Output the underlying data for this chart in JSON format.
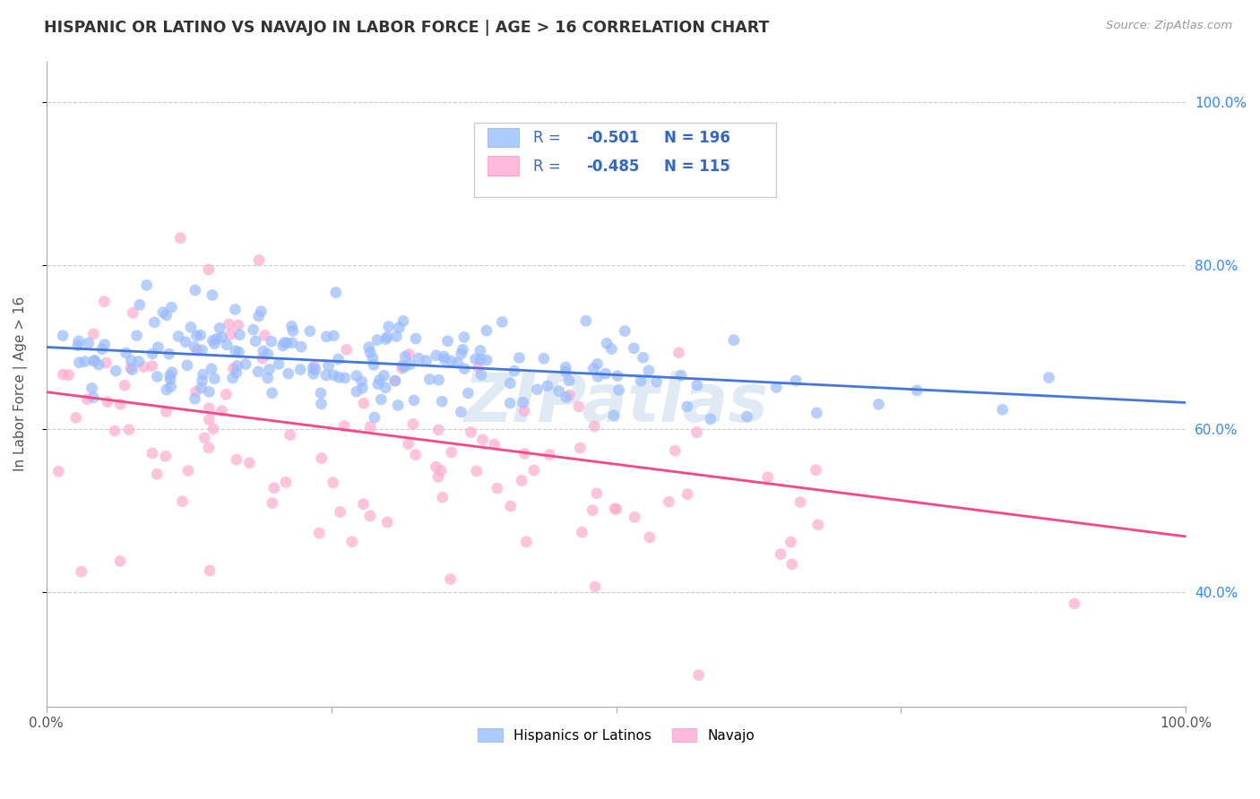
{
  "title": "HISPANIC OR LATINO VS NAVAJO IN LABOR FORCE | AGE > 16 CORRELATION CHART",
  "source": "Source: ZipAtlas.com",
  "ylabel": "In Labor Force | Age > 16",
  "right_yticks": [
    0.4,
    0.6,
    0.8,
    1.0
  ],
  "right_ytick_labels": [
    "40.0%",
    "60.0%",
    "80.0%",
    "100.0%"
  ],
  "blue_R": -0.501,
  "blue_N": 196,
  "pink_R": -0.485,
  "pink_N": 115,
  "blue_scatter_color": "#99bbff",
  "pink_scatter_color": "#ffaacc",
  "blue_line_color": "#4477dd",
  "pink_line_color": "#ff4488",
  "blue_legend_sq": "#aaccff",
  "pink_legend_sq": "#ffbbdd",
  "legend_text_color": "#3366cc",
  "watermark": "ZIPatlas",
  "watermark_color": "#99bbdd",
  "background_color": "#ffffff",
  "grid_color": "#cccccc",
  "xlim": [
    0.0,
    1.0
  ],
  "ylim": [
    0.26,
    1.05
  ],
  "blue_trend_start_y": 0.7,
  "blue_trend_end_y": 0.632,
  "pink_trend_start_y": 0.645,
  "pink_trend_end_y": 0.468
}
